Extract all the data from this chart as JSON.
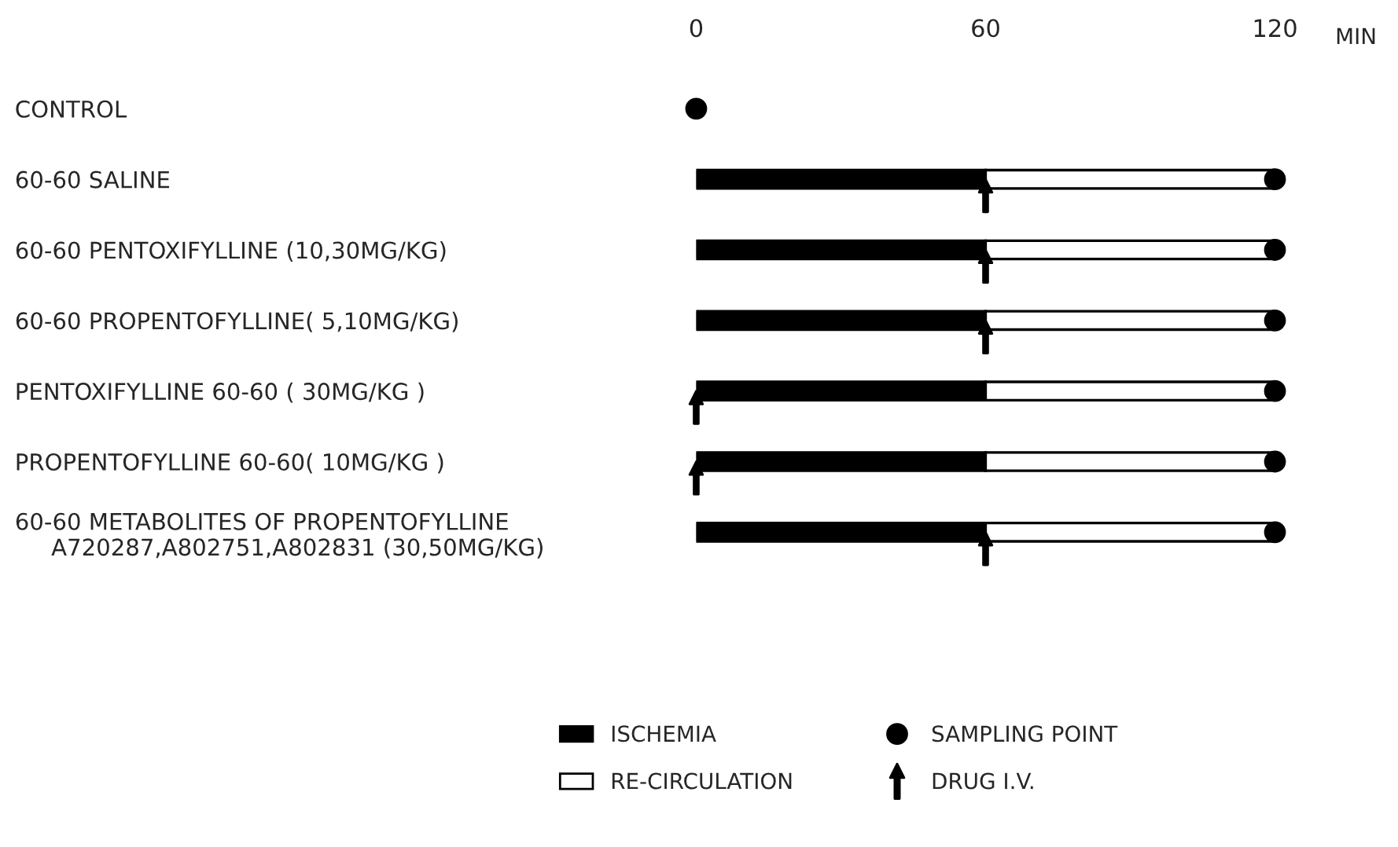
{
  "chart_data": {
    "type": "bar",
    "orientation": "horizontal",
    "stacked": true,
    "categories": [
      "CONTROL",
      "60-60 SALINE",
      "60-60 PENTOXIFYLLINE (10,30MG/KG)",
      "60-60 PROPENTOFYLLINE( 5,10MG/KG)",
      "PENTOXIFYLLINE 60-60 ( 30MG/KG )",
      "PROPENTOFYLLINE 60-60( 10MG/KG )",
      "60-60 METABOLITES OF PROPENTOFYLLINE\n     A720287,A802751,A802831 (30,50MG/KG)"
    ],
    "series": [
      {
        "name": "ISCHEMIA",
        "color": "#000000",
        "values": [
          null,
          60,
          60,
          60,
          60,
          60,
          60
        ]
      },
      {
        "name": "RE-CIRCULATION",
        "color": "#ffffff",
        "values": [
          null,
          60,
          60,
          60,
          60,
          60,
          60
        ]
      },
      {
        "name": "SAMPLING POINT",
        "type": "scatter",
        "marker": "circle",
        "color": "#000000",
        "values": [
          0,
          120,
          120,
          120,
          120,
          120,
          120
        ]
      },
      {
        "name": "DRUG I.V.",
        "type": "scatter",
        "color": "#000000",
        "values": [
          null,
          60,
          60,
          60,
          0,
          0,
          60
        ]
      }
    ],
    "xlabel": "MIN",
    "xlim": [
      0,
      120
    ],
    "xticks": [
      0,
      60,
      120
    ],
    "grid": false,
    "legend": "bottom"
  }
}
